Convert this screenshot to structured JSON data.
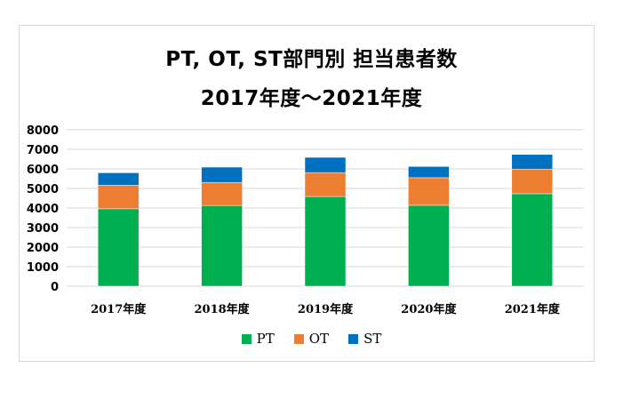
{
  "chart_data": {
    "type": "bar",
    "stacked": true,
    "title": [
      "PT, OT, ST部門別 担当患者数",
      "2017年度～2021年度"
    ],
    "xlabel": "",
    "ylabel": "",
    "categories": [
      "2017年度",
      "2018年度",
      "2019年度",
      "2020年度",
      "2021年度"
    ],
    "series": [
      {
        "name": "PT",
        "color": "#00b050",
        "values": [
          3960,
          4130,
          4590,
          4140,
          4730
        ]
      },
      {
        "name": "OT",
        "color": "#ed7d31",
        "values": [
          1200,
          1180,
          1220,
          1410,
          1260
        ]
      },
      {
        "name": "ST",
        "color": "#0070c0",
        "values": [
          640,
          780,
          780,
          570,
          750
        ]
      }
    ],
    "ylim": [
      0,
      8000
    ],
    "yticks": [
      "0",
      "1000",
      "2000",
      "3000",
      "4000",
      "5000",
      "6000",
      "7000",
      "8000"
    ],
    "grid": true,
    "legend_position": "bottom"
  }
}
